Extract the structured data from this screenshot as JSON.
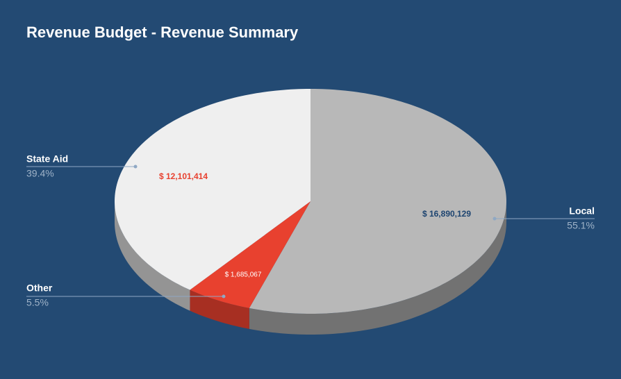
{
  "chart_data": {
    "type": "pie",
    "title": "Revenue Budget - Revenue Summary",
    "categories": [
      "Local",
      "Other",
      "State Aid"
    ],
    "values": [
      16890129,
      1685067,
      12101414
    ],
    "value_labels": [
      "$ 16,890,129",
      "$ 1,685,067",
      "$ 12,101,414"
    ],
    "percents": [
      55.1,
      5.5,
      39.4
    ],
    "percent_labels": [
      "55.1%",
      "5.5%",
      "39.4%"
    ],
    "colors": [
      "#b8b8b8",
      "#e8412f",
      "#efefef"
    ]
  }
}
